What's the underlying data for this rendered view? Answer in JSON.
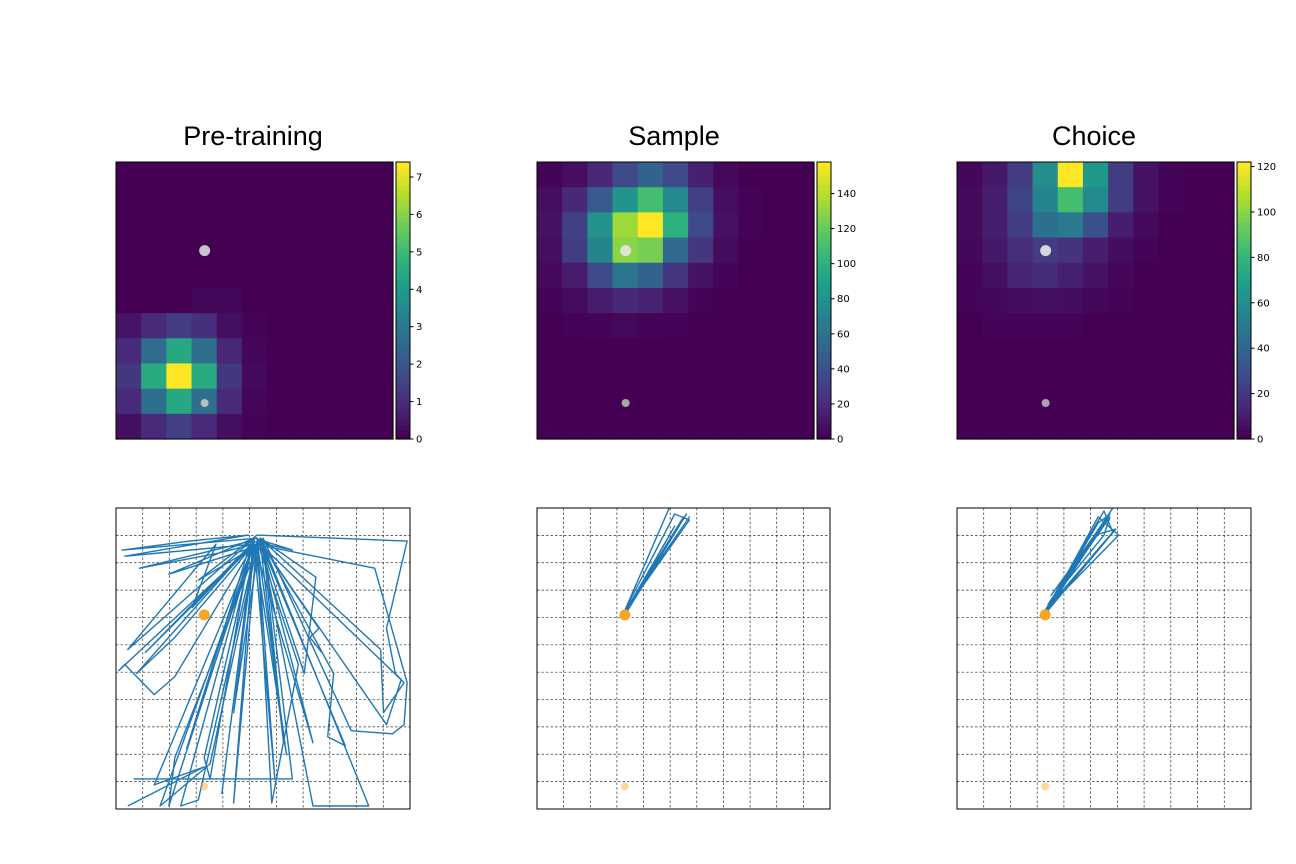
{
  "chart_data": [
    {
      "type": "heatmap",
      "title": "Pre-training",
      "grid_size": 11,
      "colormap": "viridis",
      "colorbar": {
        "ticks": [
          0,
          1,
          2,
          3,
          4,
          5,
          6,
          7
        ],
        "range": [
          0,
          7.4
        ]
      },
      "values": [
        [
          0,
          0,
          0,
          0,
          0,
          0,
          0,
          0,
          0,
          0,
          0
        ],
        [
          0,
          0,
          0,
          0,
          0,
          0,
          0,
          0,
          0,
          0,
          0
        ],
        [
          0,
          0,
          0,
          0,
          0,
          0,
          0,
          0,
          0,
          0,
          0
        ],
        [
          0,
          0,
          0,
          0,
          0,
          0,
          0,
          0,
          0,
          0,
          0
        ],
        [
          0,
          0,
          0,
          0,
          0,
          0,
          0,
          0,
          0,
          0,
          0
        ],
        [
          0,
          0,
          0,
          0.1,
          0.1,
          0,
          0,
          0,
          0,
          0,
          0
        ],
        [
          0.4,
          0.9,
          1.3,
          1.0,
          0.3,
          0.05,
          0,
          0,
          0,
          0,
          0
        ],
        [
          0.9,
          2.6,
          4.4,
          2.7,
          0.8,
          0.1,
          0,
          0,
          0,
          0,
          0
        ],
        [
          1.2,
          4.5,
          7.4,
          4.5,
          1.2,
          0.2,
          0,
          0,
          0,
          0,
          0
        ],
        [
          0.9,
          2.7,
          4.4,
          2.7,
          0.9,
          0.1,
          0,
          0,
          0,
          0,
          0
        ],
        [
          0.3,
          0.9,
          1.4,
          0.9,
          0.3,
          0.05,
          0,
          0,
          0,
          0,
          0
        ]
      ],
      "markers": [
        {
          "x": 0.32,
          "y": 0.32,
          "color": "#d9d9d9",
          "size": "large"
        },
        {
          "x": 0.32,
          "y": 0.87,
          "color": "#c7c7c7",
          "size": "small"
        }
      ]
    },
    {
      "type": "heatmap",
      "title": "Sample",
      "grid_size": 11,
      "colormap": "viridis",
      "colorbar": {
        "ticks": [
          0,
          20,
          40,
          60,
          80,
          100,
          120,
          140
        ],
        "range": [
          0,
          158
        ]
      },
      "values": [
        [
          2,
          6,
          18,
          35,
          50,
          35,
          14,
          3,
          0,
          0,
          0
        ],
        [
          6,
          18,
          45,
          82,
          110,
          75,
          30,
          6,
          1,
          0,
          0
        ],
        [
          8,
          30,
          80,
          135,
          158,
          100,
          35,
          7,
          1,
          0,
          0
        ],
        [
          6,
          28,
          72,
          130,
          125,
          55,
          25,
          5,
          0,
          0,
          0
        ],
        [
          3,
          12,
          35,
          62,
          50,
          25,
          8,
          2,
          0,
          0,
          0
        ],
        [
          1,
          5,
          12,
          18,
          15,
          7,
          2,
          0,
          0,
          0,
          0
        ],
        [
          0,
          1,
          2,
          3,
          2,
          1,
          0,
          0,
          0,
          0,
          0
        ],
        [
          0,
          0,
          0,
          0,
          0,
          0,
          0,
          0,
          0,
          0,
          0
        ],
        [
          0,
          0,
          0,
          0,
          0,
          0,
          0,
          0,
          0,
          0,
          0
        ],
        [
          0,
          0,
          0,
          0,
          0,
          0,
          0,
          0,
          0,
          0,
          0
        ],
        [
          0,
          0,
          0,
          0,
          0,
          0,
          0,
          0,
          0,
          0,
          0
        ]
      ],
      "markers": [
        {
          "x": 0.32,
          "y": 0.32,
          "color": "#e6e6e6",
          "size": "large"
        },
        {
          "x": 0.32,
          "y": 0.87,
          "color": "#b7b7b7",
          "size": "small"
        }
      ]
    },
    {
      "type": "heatmap",
      "title": "Choice",
      "grid_size": 11,
      "colormap": "viridis",
      "colorbar": {
        "ticks": [
          0,
          20,
          40,
          60,
          80,
          100,
          120
        ],
        "range": [
          0,
          122
        ]
      },
      "values": [
        [
          2,
          8,
          22,
          60,
          122,
          65,
          22,
          6,
          1,
          0,
          0
        ],
        [
          3,
          10,
          25,
          55,
          85,
          58,
          22,
          6,
          1,
          0,
          0
        ],
        [
          3,
          10,
          22,
          45,
          50,
          30,
          10,
          3,
          0,
          0,
          0
        ],
        [
          2,
          8,
          16,
          22,
          18,
          10,
          4,
          1,
          0,
          0,
          0
        ],
        [
          1,
          5,
          12,
          15,
          11,
          6,
          2,
          0,
          0,
          0,
          0
        ],
        [
          1,
          2,
          4,
          5,
          4,
          2,
          1,
          0,
          0,
          0,
          0
        ],
        [
          0,
          1,
          1,
          1,
          1,
          0,
          0,
          0,
          0,
          0,
          0
        ],
        [
          0,
          0,
          0,
          0,
          0,
          0,
          0,
          0,
          0,
          0,
          0
        ],
        [
          0,
          0,
          0,
          0,
          0,
          0,
          0,
          0,
          0,
          0,
          0
        ],
        [
          0,
          0,
          0,
          0,
          0,
          0,
          0,
          0,
          0,
          0,
          0
        ],
        [
          0,
          0,
          0,
          0,
          0,
          0,
          0,
          0,
          0,
          0,
          0
        ]
      ],
      "markers": [
        {
          "x": 0.32,
          "y": 0.32,
          "color": "#e6e6e6",
          "size": "large"
        },
        {
          "x": 0.32,
          "y": 0.87,
          "color": "#b7b7b7",
          "size": "small"
        }
      ]
    },
    {
      "type": "line",
      "subtype": "trajectory",
      "grid": true,
      "grid_divisions": 11,
      "line_color": "#1f77b4",
      "markers": [
        {
          "x": 0.3,
          "y": 0.355,
          "color": "#f5a623",
          "opacity": 1.0
        },
        {
          "x": 0.3,
          "y": 0.925,
          "color": "#f5a623",
          "opacity": 0.45
        }
      ],
      "paths": [
        [
          [
            0.48,
            0.1
          ],
          [
            0.02,
            0.14
          ],
          [
            0.25,
            0.11
          ],
          [
            0.45,
            0.09
          ],
          [
            0.03,
            0.16
          ],
          [
            0.47,
            0.12
          ],
          [
            0.35,
            0.15
          ],
          [
            0.08,
            0.2
          ],
          [
            0.46,
            0.11
          ],
          [
            0.6,
            0.14
          ],
          [
            0.47,
            0.1
          ],
          [
            0.18,
            0.22
          ],
          [
            0.47,
            0.13
          ],
          [
            0.28,
            0.24
          ],
          [
            0.48,
            0.09
          ],
          [
            0.99,
            0.11
          ],
          [
            0.92,
            0.4
          ],
          [
            0.95,
            0.55
          ],
          [
            0.97,
            0.57
          ],
          [
            0.92,
            0.72
          ],
          [
            0.48,
            0.1
          ]
        ],
        [
          [
            0.47,
            0.1
          ],
          [
            0.04,
            0.47
          ],
          [
            0.34,
            0.12
          ],
          [
            0.26,
            0.33
          ],
          [
            0.47,
            0.11
          ],
          [
            0.1,
            0.48
          ],
          [
            0.47,
            0.12
          ],
          [
            0.01,
            0.54
          ],
          [
            0.03,
            0.52
          ],
          [
            0.13,
            0.62
          ],
          [
            0.2,
            0.56
          ],
          [
            0.47,
            0.12
          ],
          [
            0.24,
            0.8
          ],
          [
            0.46,
            0.11
          ],
          [
            0.32,
            0.9
          ],
          [
            0.3,
            0.83
          ],
          [
            0.47,
            0.1
          ],
          [
            0.4,
            0.98
          ],
          [
            0.48,
            0.11
          ],
          [
            0.54,
            0.9
          ],
          [
            0.47,
            0.12
          ],
          [
            0.58,
            0.82
          ],
          [
            0.48,
            0.11
          ],
          [
            0.28,
            0.97
          ],
          [
            0.22,
            0.99
          ],
          [
            0.47,
            0.1
          ],
          [
            0.36,
            0.95
          ]
        ],
        [
          [
            0.49,
            0.1
          ],
          [
            0.68,
            0.23
          ],
          [
            0.64,
            0.55
          ],
          [
            0.49,
            0.11
          ],
          [
            0.57,
            0.78
          ],
          [
            0.5,
            0.12
          ],
          [
            0.86,
            0.99
          ],
          [
            0.67,
            0.99
          ],
          [
            0.49,
            0.1
          ],
          [
            0.74,
            0.55
          ],
          [
            0.72,
            0.76
          ],
          [
            0.78,
            0.79
          ],
          [
            0.49,
            0.11
          ],
          [
            0.67,
            0.78
          ],
          [
            0.47,
            0.12
          ],
          [
            0.4,
            0.68
          ],
          [
            0.49,
            0.1
          ],
          [
            0.9,
            0.47
          ],
          [
            0.91,
            0.68
          ],
          [
            0.98,
            0.58
          ],
          [
            0.48,
            0.11
          ],
          [
            0.62,
            0.52
          ],
          [
            0.53,
            0.98
          ],
          [
            0.48,
            0.1
          ],
          [
            0.69,
            0.4
          ],
          [
            0.66,
            0.43
          ],
          [
            0.7,
            0.48
          ],
          [
            0.68,
            0.44
          ]
        ],
        [
          [
            0.06,
            0.9
          ],
          [
            0.6,
            0.9
          ],
          [
            0.5,
            0.1
          ],
          [
            0.8,
            0.74
          ],
          [
            0.94,
            0.75
          ],
          [
            0.98,
            0.72
          ],
          [
            0.99,
            0.58
          ],
          [
            0.88,
            0.2
          ],
          [
            0.47,
            0.12
          ],
          [
            0.15,
            0.99
          ],
          [
            0.32,
            0.85
          ],
          [
            0.48,
            0.13
          ],
          [
            0.2,
            0.83
          ],
          [
            0.18,
            0.99
          ],
          [
            0.47,
            0.11
          ],
          [
            0.07,
            0.55
          ],
          [
            0.2,
            0.43
          ],
          [
            0.47,
            0.12
          ],
          [
            0.13,
            0.92
          ],
          [
            0.3,
            0.86
          ],
          [
            0.04,
            0.99
          ]
        ]
      ]
    },
    {
      "type": "line",
      "subtype": "trajectory",
      "grid": true,
      "grid_divisions": 11,
      "line_color": "#1f77b4",
      "markers": [
        {
          "x": 0.3,
          "y": 0.355,
          "color": "#f5a623",
          "opacity": 1.0
        },
        {
          "x": 0.3,
          "y": 0.925,
          "color": "#f5a623",
          "opacity": 0.45
        }
      ],
      "paths": [
        [
          [
            0.3,
            0.34
          ],
          [
            0.47,
            0.02
          ],
          [
            0.52,
            0.04
          ],
          [
            0.31,
            0.33
          ],
          [
            0.5,
            0.03
          ],
          [
            0.3,
            0.35
          ],
          [
            0.49,
            0.05
          ],
          [
            0.31,
            0.34
          ],
          [
            0.51,
            0.02
          ],
          [
            0.3,
            0.35
          ],
          [
            0.47,
            0.06
          ],
          [
            0.31,
            0.33
          ],
          [
            0.52,
            0.03
          ],
          [
            0.3,
            0.34
          ],
          [
            0.46,
            -0.02
          ]
        ]
      ]
    },
    {
      "type": "line",
      "subtype": "trajectory",
      "grid": true,
      "grid_divisions": 11,
      "line_color": "#1f77b4",
      "markers": [
        {
          "x": 0.3,
          "y": 0.355,
          "color": "#f5a623",
          "opacity": 1.0
        },
        {
          "x": 0.3,
          "y": 0.925,
          "color": "#f5a623",
          "opacity": 0.45
        }
      ],
      "paths": [
        [
          [
            0.3,
            0.34
          ],
          [
            0.5,
            0.01
          ],
          [
            0.53,
            0.08
          ],
          [
            0.31,
            0.33
          ],
          [
            0.48,
            0.05
          ],
          [
            0.52,
            0.02
          ],
          [
            0.31,
            0.34
          ],
          [
            0.54,
            0.07
          ],
          [
            0.47,
            0.09
          ],
          [
            0.3,
            0.35
          ],
          [
            0.51,
            0.04
          ],
          [
            0.32,
            0.29
          ],
          [
            0.49,
            0.06
          ],
          [
            0.3,
            0.34
          ],
          [
            0.53,
            0.0
          ],
          [
            0.31,
            0.32
          ],
          [
            0.5,
            0.09
          ],
          [
            0.52,
            0.03
          ],
          [
            0.3,
            0.34
          ],
          [
            0.55,
            0.09
          ],
          [
            0.48,
            0.03
          ],
          [
            0.3,
            0.35
          ]
        ]
      ]
    }
  ]
}
